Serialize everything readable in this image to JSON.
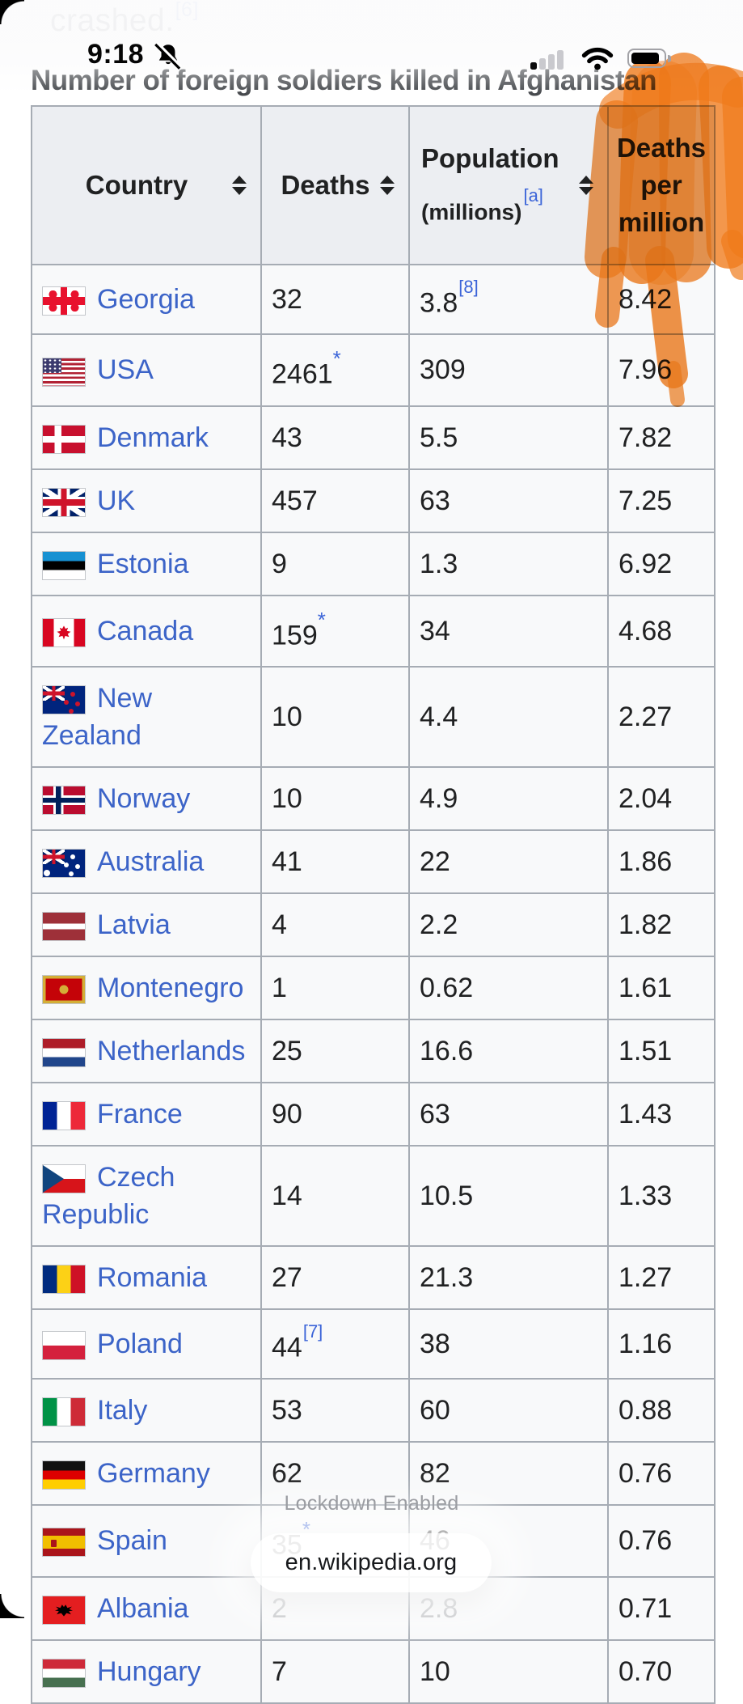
{
  "page": {
    "top_partial_text": "crashed.",
    "top_partial_ref": "[6]",
    "table_title": "Number of foreign soldiers killed in Afghanistan"
  },
  "status_bar": {
    "time": "9:18",
    "icons": [
      "notifications-muted-icon",
      "cellular-signal-icon",
      "wifi-icon",
      "battery-icon"
    ],
    "signal_bars_active": 1,
    "signal_bars_total": 4
  },
  "overlay": {
    "lockdown_text": "Lockdown Enabled",
    "url_text": "en.wikipedia.org"
  },
  "annotation": {
    "type": "highlighter-scribble",
    "color": "#f07a1a",
    "covers": "Deaths per million column header"
  },
  "colors": {
    "link_blue": "#3c64c8",
    "ref_blue": "#3b64d8",
    "header_bg": "#eceef2",
    "row_bg": "#f8f9fa",
    "border": "#a6acb4"
  },
  "table": {
    "columns": [
      {
        "label": "Country",
        "sortable": true
      },
      {
        "label": "Deaths",
        "sortable": true
      },
      {
        "label": "Population",
        "label2": "(millions)",
        "ref": "[a]",
        "sortable": true
      },
      {
        "label": "Deaths per million",
        "sortable": false
      }
    ],
    "rows": [
      {
        "flag": "georgia",
        "country": "Georgia",
        "deaths": "32",
        "population": "3.8",
        "population_ref": "[8]",
        "deaths_per_million": "8.42"
      },
      {
        "flag": "usa",
        "country": "USA",
        "deaths": "2461",
        "deaths_ref": "*",
        "population": "309",
        "deaths_per_million": "7.96"
      },
      {
        "flag": "denmark",
        "country": "Denmark",
        "deaths": "43",
        "population": "5.5",
        "deaths_per_million": "7.82"
      },
      {
        "flag": "uk",
        "country": "UK",
        "deaths": "457",
        "population": "63",
        "deaths_per_million": "7.25"
      },
      {
        "flag": "estonia",
        "country": "Estonia",
        "deaths": "9",
        "population": "1.3",
        "deaths_per_million": "6.92"
      },
      {
        "flag": "canada",
        "country": "Canada",
        "deaths": "159",
        "deaths_ref": "*",
        "population": "34",
        "deaths_per_million": "4.68"
      },
      {
        "flag": "new-zealand",
        "country": "New Zealand",
        "wrap": true,
        "deaths": "10",
        "population": "4.4",
        "deaths_per_million": "2.27"
      },
      {
        "flag": "norway",
        "country": "Norway",
        "deaths": "10",
        "population": "4.9",
        "deaths_per_million": "2.04"
      },
      {
        "flag": "australia",
        "country": "Australia",
        "deaths": "41",
        "population": "22",
        "deaths_per_million": "1.86"
      },
      {
        "flag": "latvia",
        "country": "Latvia",
        "deaths": "4",
        "population": "2.2",
        "deaths_per_million": "1.82"
      },
      {
        "flag": "montenegro",
        "country": "Montenegro",
        "deaths": "1",
        "population": "0.62",
        "deaths_per_million": "1.61"
      },
      {
        "flag": "netherlands",
        "country": "Netherlands",
        "deaths": "25",
        "population": "16.6",
        "deaths_per_million": "1.51"
      },
      {
        "flag": "france",
        "country": "France",
        "deaths": "90",
        "population": "63",
        "deaths_per_million": "1.43"
      },
      {
        "flag": "czech-republic",
        "country": "Czech Republic",
        "wrap": true,
        "deaths": "14",
        "population": "10.5",
        "deaths_per_million": "1.33"
      },
      {
        "flag": "romania",
        "country": "Romania",
        "deaths": "27",
        "population": "21.3",
        "deaths_per_million": "1.27"
      },
      {
        "flag": "poland",
        "country": "Poland",
        "deaths": "44",
        "deaths_ref": "[7]",
        "population": "38",
        "deaths_per_million": "1.16"
      },
      {
        "flag": "italy",
        "country": "Italy",
        "deaths": "53",
        "population": "60",
        "deaths_per_million": "0.88"
      },
      {
        "flag": "germany",
        "country": "Germany",
        "deaths": "62",
        "population": "82",
        "deaths_per_million": "0.76"
      },
      {
        "flag": "spain",
        "country": "Spain",
        "deaths": "35",
        "deaths_ref": "*",
        "population": "46",
        "deaths_per_million": "0.76"
      },
      {
        "flag": "albania",
        "country": "Albania",
        "deaths": "2",
        "population": "2.8",
        "deaths_per_million": "0.71",
        "ghosted": [
          "deaths",
          "population"
        ]
      },
      {
        "flag": "hungary",
        "country": "Hungary",
        "deaths": "7",
        "population": "10",
        "deaths_per_million": "0.70"
      }
    ]
  }
}
